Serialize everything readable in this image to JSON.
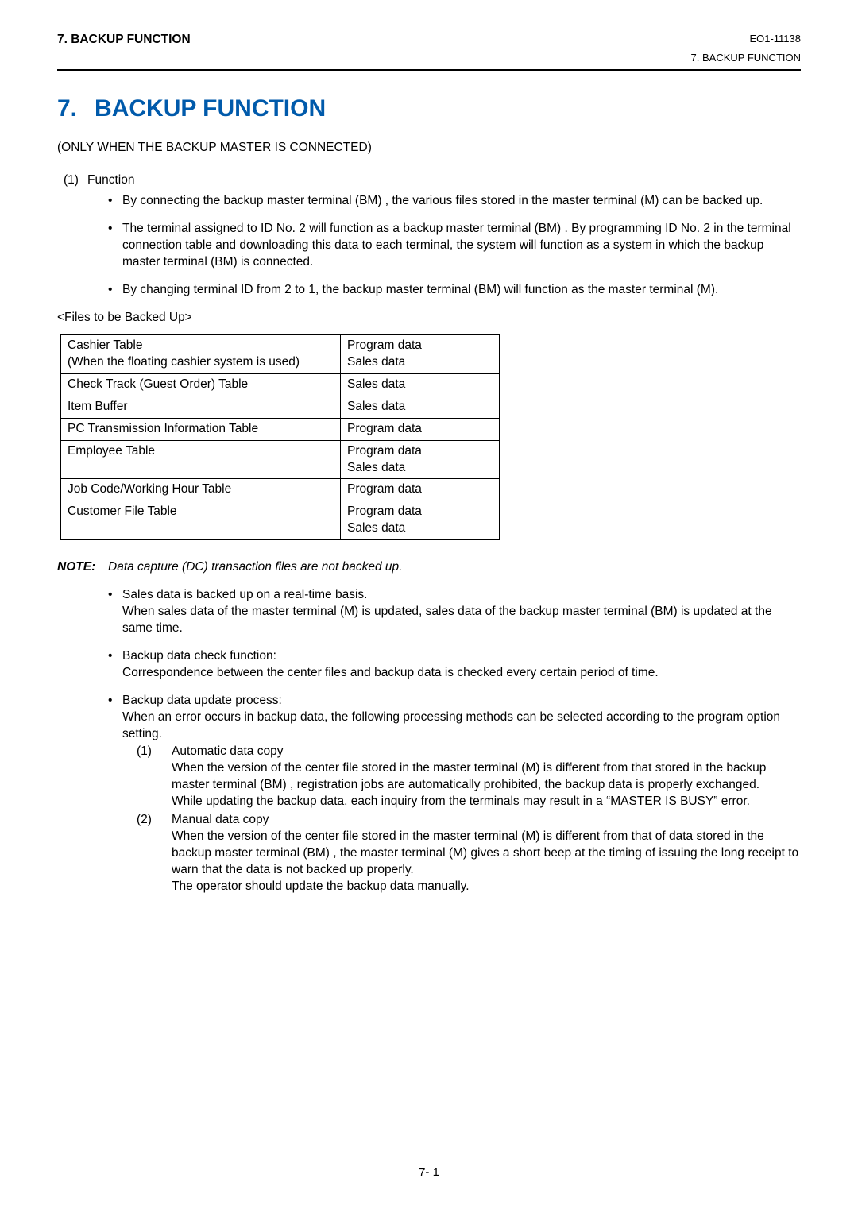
{
  "header": {
    "left": "7.   BACKUP FUNCTION",
    "right_code": "EO1-11138",
    "right_sub": "7.  BACKUP FUNCTION"
  },
  "title": {
    "num": "7.",
    "text": "BACKUP FUNCTION"
  },
  "subtitle": "(ONLY WHEN THE BACKUP MASTER IS CONNECTED)",
  "section1": {
    "label_num": "(1)",
    "label_text": "Function",
    "bullets": [
      "By connecting the backup master terminal (BM) , the various files stored in the master terminal (M) can be backed up.",
      "The terminal assigned to ID No. 2 will function as a backup master terminal (BM) . By programming ID No. 2 in the terminal connection table and downloading this data to each terminal, the system will function as a system in which the backup master terminal (BM) is connected.",
      "By changing terminal ID from 2 to 1, the backup master terminal (BM) will function as the master terminal (M)."
    ]
  },
  "files_label": "<Files to be Backed Up>",
  "files_table": {
    "rows": [
      {
        "c1": "Cashier Table\n(When the floating cashier system is used)",
        "c2": "Program data\nSales data"
      },
      {
        "c1": "Check Track (Guest Order) Table",
        "c2": "Sales data"
      },
      {
        "c1": "Item Buffer",
        "c2": "Sales data"
      },
      {
        "c1": "PC Transmission Information Table",
        "c2": "Program data"
      },
      {
        "c1": "Employee Table",
        "c2": "Program data\nSales data"
      },
      {
        "c1": "Job Code/Working Hour Table",
        "c2": "Program data"
      },
      {
        "c1": "Customer File Table",
        "c2": "Program data\nSales data"
      }
    ]
  },
  "note": {
    "label": "NOTE:",
    "text": "Data capture (DC) transaction files are not backed up."
  },
  "bullets2": [
    {
      "lines": [
        "Sales data is backed up on a real-time basis.",
        "When sales data of the master terminal (M) is updated, sales data of the backup master terminal (BM) is updated at the same time."
      ]
    },
    {
      "lines": [
        "Backup data check function:",
        "Correspondence between the center files and backup data is checked every certain period of time."
      ]
    },
    {
      "lines": [
        "Backup data update process:",
        "When an error occurs in backup data, the following processing methods can be selected according to the program option setting."
      ],
      "numlist": [
        {
          "n": "(1)",
          "title": "Automatic data copy",
          "body": "When the version of the center file stored in the master terminal (M) is different from that stored in the backup master terminal (BM) , registration jobs are automatically prohibited, the backup data is properly exchanged.\nWhile updating the backup data, each inquiry from the terminals may result in a “MASTER IS BUSY” error."
        },
        {
          "n": "(2)",
          "title": "Manual data copy",
          "body": "When the version of the center file stored in the master terminal (M) is different from that of data stored in the backup master terminal (BM) , the master terminal (M) gives a short beep at the timing of issuing the long receipt to warn that the data is not backed up properly.\nThe operator should update the backup data manually."
        }
      ]
    }
  ],
  "page_num": "7- 1"
}
